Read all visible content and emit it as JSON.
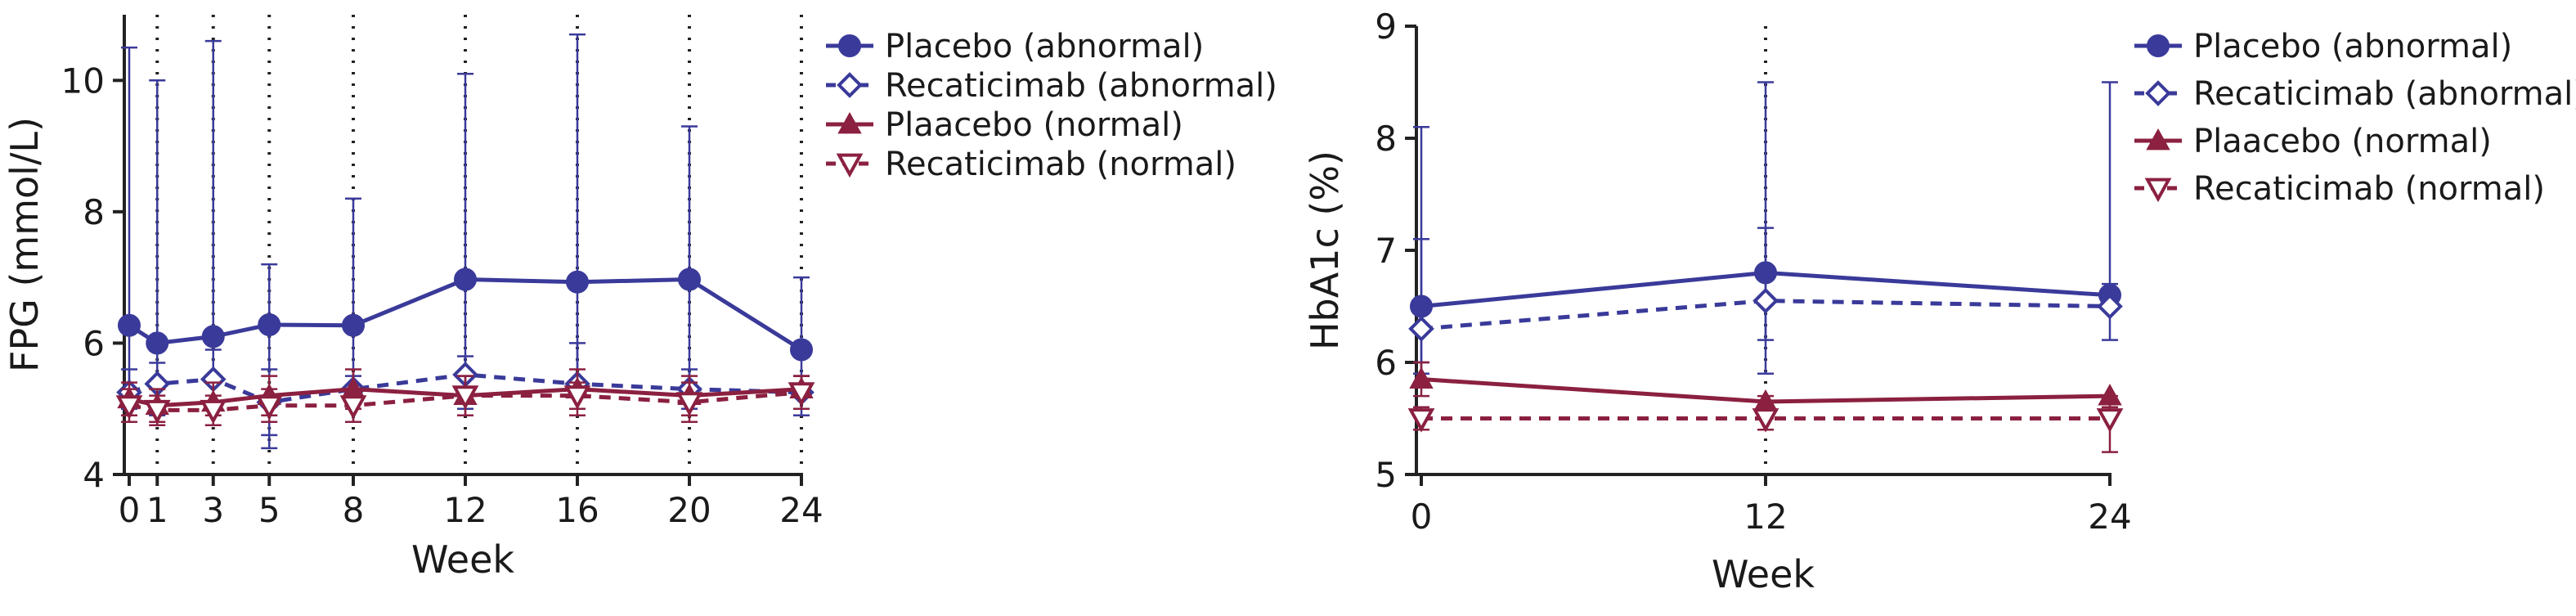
{
  "chart_data": [
    {
      "type": "line",
      "xlabel": "Week",
      "ylabel": "FPG (mmol/L)",
      "x": [
        0,
        1,
        3,
        5,
        8,
        12,
        16,
        20,
        24
      ],
      "xlim": [
        0,
        24
      ],
      "ylim": [
        4,
        11
      ],
      "yticks": [
        4,
        6,
        8,
        10
      ],
      "visit_lines": [
        1,
        3,
        5,
        8,
        12,
        16,
        20,
        24
      ],
      "legend": "right",
      "series": [
        {
          "name": "Placebo (abnormal)",
          "color": "#3a3a9a",
          "marker": "circle",
          "dash": false,
          "values": [
            6.27,
            6.0,
            6.1,
            6.28,
            6.27,
            6.97,
            6.93,
            6.97,
            5.9
          ],
          "err_upper": [
            10.5,
            10.0,
            10.6,
            7.2,
            8.2,
            10.1,
            10.7,
            9.3,
            7.0
          ],
          "err_lower": [
            5.0,
            4.9,
            5.0,
            4.4,
            4.8,
            5.0,
            5.0,
            5.0,
            4.9
          ]
        },
        {
          "name": "Recaticimab (abnormal)",
          "color": "#3a3a9a",
          "marker": "diamond",
          "dash": true,
          "values": [
            5.25,
            5.38,
            5.45,
            5.1,
            5.3,
            5.52,
            5.38,
            5.3,
            5.25
          ],
          "err_upper": [
            5.6,
            5.7,
            5.9,
            5.6,
            5.5,
            5.8,
            6.0,
            5.6,
            5.5
          ],
          "err_lower": [
            4.9,
            5.0,
            5.0,
            4.6,
            5.0,
            5.2,
            5.0,
            5.0,
            5.0
          ]
        },
        {
          "name": "Plaacebo (normal)",
          "color": "#8b2040",
          "marker": "triangle-up",
          "dash": false,
          "values": [
            5.15,
            5.05,
            5.1,
            5.2,
            5.3,
            5.2,
            5.3,
            5.2,
            5.3
          ],
          "err_upper": [
            5.4,
            5.3,
            5.4,
            5.5,
            5.6,
            5.5,
            5.6,
            5.5,
            5.5
          ],
          "err_lower": [
            4.9,
            4.8,
            4.9,
            4.9,
            5.0,
            4.9,
            5.0,
            4.9,
            5.0
          ]
        },
        {
          "name": "Recaticimab (normal)",
          "color": "#8b2040",
          "marker": "triangle-down",
          "dash": true,
          "values": [
            5.05,
            4.98,
            4.98,
            5.05,
            5.05,
            5.2,
            5.2,
            5.1,
            5.25
          ],
          "err_upper": [
            5.3,
            5.2,
            5.2,
            5.3,
            5.3,
            5.5,
            5.4,
            5.4,
            5.5
          ],
          "err_lower": [
            4.8,
            4.75,
            4.75,
            4.8,
            4.8,
            4.9,
            4.9,
            4.8,
            5.0
          ]
        }
      ]
    },
    {
      "type": "line",
      "xlabel": "Week",
      "ylabel": "HbA1c (%)",
      "x": [
        0,
        12,
        24
      ],
      "xlim": [
        0,
        24
      ],
      "ylim": [
        5,
        9
      ],
      "yticks": [
        5,
        6,
        7,
        8,
        9
      ],
      "visit_lines": [
        12
      ],
      "legend": "right",
      "series": [
        {
          "name": "Placebo (abnormal)",
          "color": "#3a3a9a",
          "marker": "circle",
          "dash": false,
          "values": [
            6.5,
            6.8,
            6.6
          ],
          "err_upper": [
            7.1,
            7.2,
            6.7
          ],
          "err_lower": [
            6.0,
            6.2,
            6.5
          ]
        },
        {
          "name": "Recaticimab (abnormal)",
          "color": "#3a3a9a",
          "marker": "diamond",
          "dash": true,
          "values": [
            6.3,
            6.55,
            6.5
          ],
          "err_upper": [
            8.1,
            8.5,
            8.5
          ],
          "err_lower": [
            5.9,
            5.9,
            6.2
          ]
        },
        {
          "name": "Plaacebo (normal)",
          "color": "#8b2040",
          "marker": "triangle-up",
          "dash": false,
          "values": [
            5.85,
            5.65,
            5.7
          ],
          "err_upper": [
            6.0,
            5.7,
            5.7
          ],
          "err_lower": [
            5.7,
            5.5,
            5.6
          ]
        },
        {
          "name": "Recaticimab (normal)",
          "color": "#8b2040",
          "marker": "triangle-down",
          "dash": true,
          "values": [
            5.5,
            5.5,
            5.5
          ],
          "err_upper": [
            5.6,
            5.6,
            5.6
          ],
          "err_lower": [
            5.4,
            5.4,
            5.2
          ]
        }
      ]
    }
  ]
}
